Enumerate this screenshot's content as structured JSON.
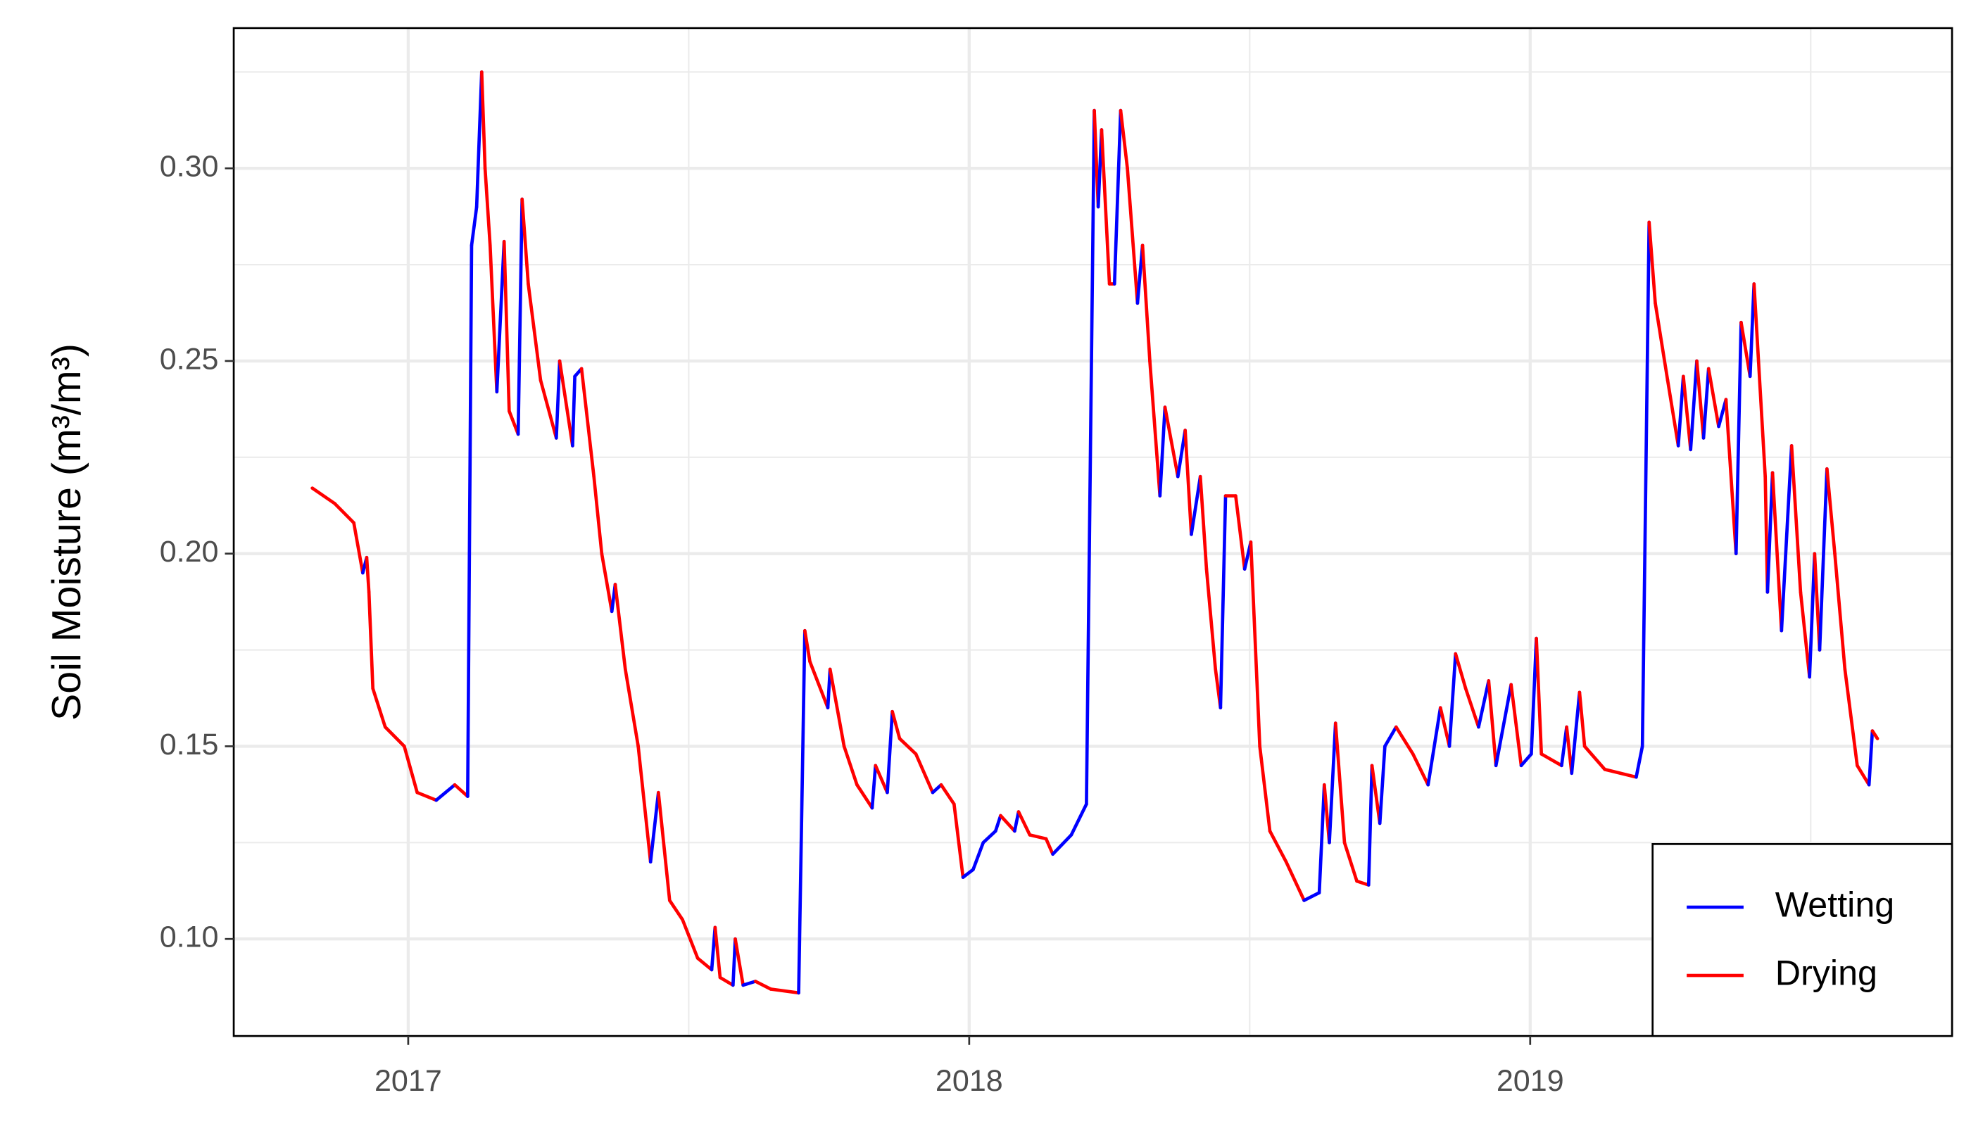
{
  "chart_data": {
    "type": "line",
    "ylabel": "Soil Moisture (m³/m³)",
    "xlim": [
      2016.689,
      2019.752
    ],
    "xticks": [
      2017,
      2018,
      2019
    ],
    "ylim": [
      0.0748,
      0.3364
    ],
    "yticks": [
      {
        "value": 0.1,
        "label": "0.10"
      },
      {
        "value": 0.15,
        "label": "0.15"
      },
      {
        "value": 0.2,
        "label": "0.20"
      },
      {
        "value": 0.25,
        "label": "0.25"
      },
      {
        "value": 0.3,
        "label": "0.30"
      }
    ],
    "grid": true,
    "legend": "lower right",
    "series": [
      {
        "name": "Wetting",
        "color": "#0000ff"
      },
      {
        "name": "Drying",
        "color": "#ff0000"
      }
    ],
    "x": [
      2016.829,
      2016.869,
      2016.903,
      2016.919,
      2016.926,
      2016.93,
      2016.937,
      2016.959,
      2016.993,
      2017.016,
      2017.05,
      2017.083,
      2017.106,
      2017.113,
      2017.122,
      2017.131,
      2017.137,
      2017.146,
      2017.158,
      2017.171,
      2017.18,
      2017.196,
      2017.203,
      2017.214,
      2017.236,
      2017.264,
      2017.27,
      2017.293,
      2017.297,
      2017.309,
      2017.331,
      2017.345,
      2017.363,
      2017.369,
      2017.387,
      2017.41,
      2017.432,
      2017.446,
      2017.466,
      2017.489,
      2017.516,
      2017.541,
      2017.547,
      2017.556,
      2017.579,
      2017.583,
      2017.597,
      2017.619,
      2017.646,
      2017.696,
      2017.707,
      2017.716,
      2017.748,
      2017.752,
      2017.777,
      2017.8,
      2017.827,
      2017.833,
      2017.854,
      2017.863,
      2017.876,
      2017.905,
      2017.935,
      2017.95,
      2017.973,
      2017.989,
      2018.007,
      2018.025,
      2018.047,
      2018.056,
      2018.081,
      2018.088,
      2018.108,
      2018.137,
      2018.149,
      2018.182,
      2018.209,
      2018.223,
      2018.23,
      2018.236,
      2018.25,
      2018.259,
      2018.27,
      2018.282,
      2018.3,
      2018.309,
      2018.322,
      2018.34,
      2018.349,
      2018.372,
      2018.385,
      2018.396,
      2018.412,
      2018.423,
      2018.439,
      2018.448,
      2018.457,
      2018.475,
      2018.491,
      2018.502,
      2018.518,
      2018.536,
      2018.565,
      2018.597,
      2018.624,
      2018.633,
      2018.642,
      2018.653,
      2018.669,
      2018.691,
      2018.712,
      2018.718,
      2018.732,
      2018.741,
      2018.761,
      2018.791,
      2018.818,
      2018.84,
      2018.856,
      2018.867,
      2018.885,
      2018.908,
      2018.926,
      2018.939,
      2018.966,
      2018.984,
      2019.002,
      2019.011,
      2019.02,
      2019.056,
      2019.065,
      2019.074,
      2019.088,
      2019.097,
      2019.133,
      2019.189,
      2019.2,
      2019.212,
      2019.223,
      2019.245,
      2019.264,
      2019.273,
      2019.286,
      2019.297,
      2019.309,
      2019.318,
      2019.336,
      2019.349,
      2019.367,
      2019.376,
      2019.392,
      2019.399,
      2019.419,
      2019.423,
      2019.432,
      2019.448,
      2019.466,
      2019.482,
      2019.498,
      2019.507,
      2019.516,
      2019.529,
      2019.543,
      2019.561,
      2019.583,
      2019.604,
      2019.61,
      2019.619
    ],
    "values": [
      0.217,
      0.213,
      0.208,
      0.195,
      0.199,
      0.19,
      0.165,
      0.155,
      0.15,
      0.138,
      0.136,
      0.14,
      0.137,
      0.28,
      0.29,
      0.325,
      0.3,
      0.28,
      0.242,
      0.281,
      0.237,
      0.231,
      0.292,
      0.27,
      0.245,
      0.23,
      0.25,
      0.228,
      0.246,
      0.248,
      0.22,
      0.2,
      0.185,
      0.192,
      0.17,
      0.15,
      0.12,
      0.138,
      0.11,
      0.105,
      0.095,
      0.092,
      0.103,
      0.09,
      0.088,
      0.1,
      0.088,
      0.089,
      0.087,
      0.086,
      0.18,
      0.172,
      0.16,
      0.17,
      0.15,
      0.14,
      0.134,
      0.145,
      0.138,
      0.159,
      0.152,
      0.148,
      0.138,
      0.14,
      0.135,
      0.116,
      0.118,
      0.125,
      0.128,
      0.132,
      0.128,
      0.133,
      0.127,
      0.126,
      0.122,
      0.127,
      0.135,
      0.315,
      0.29,
      0.31,
      0.27,
      0.27,
      0.315,
      0.3,
      0.265,
      0.28,
      0.25,
      0.215,
      0.238,
      0.22,
      0.232,
      0.205,
      0.22,
      0.196,
      0.17,
      0.16,
      0.215,
      0.215,
      0.196,
      0.203,
      0.15,
      0.128,
      0.12,
      0.11,
      0.112,
      0.14,
      0.125,
      0.156,
      0.125,
      0.115,
      0.114,
      0.145,
      0.13,
      0.15,
      0.155,
      0.148,
      0.14,
      0.16,
      0.15,
      0.174,
      0.165,
      0.155,
      0.167,
      0.145,
      0.166,
      0.145,
      0.148,
      0.178,
      0.148,
      0.145,
      0.155,
      0.143,
      0.164,
      0.15,
      0.144,
      0.142,
      0.15,
      0.286,
      0.265,
      0.245,
      0.228,
      0.246,
      0.227,
      0.25,
      0.23,
      0.248,
      0.233,
      0.24,
      0.2,
      0.26,
      0.246,
      0.27,
      0.22,
      0.19,
      0.221,
      0.18,
      0.228,
      0.19,
      0.168,
      0.2,
      0.175,
      0.222,
      0.2,
      0.17,
      0.145,
      0.14,
      0.154,
      0.152
    ]
  }
}
